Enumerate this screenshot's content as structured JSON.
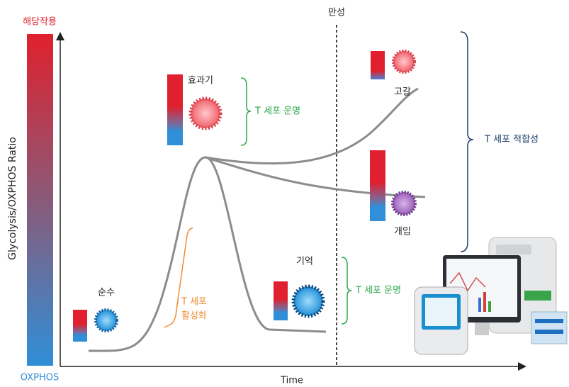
{
  "y_axis": {
    "top_label": "해당작용",
    "bottom_label": "OXPHOS",
    "title": "Glycolysis/OXPHOS Ratio"
  },
  "x_axis": {
    "title": "Time"
  },
  "divider": {
    "label": "만성"
  },
  "stages": [
    {
      "label": "순수"
    },
    {
      "label": "효과기"
    },
    {
      "label": "기억"
    },
    {
      "label": "고갈"
    },
    {
      "label": "개입"
    }
  ],
  "brackets": [
    {
      "lines": [
        "T 세포",
        "활성화"
      ]
    },
    {
      "label": "T 세포 운명"
    },
    {
      "label": "T 세포 운명"
    },
    {
      "label": "T 세포 적합성"
    }
  ]
}
